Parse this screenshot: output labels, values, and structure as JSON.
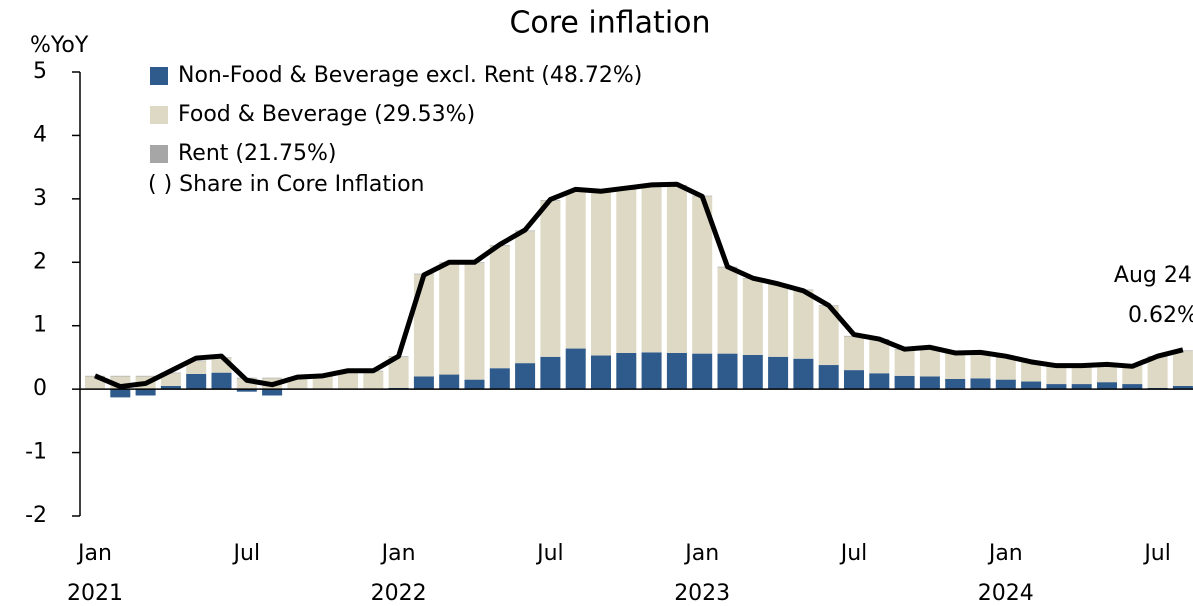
{
  "chart_data": {
    "type": "bar_line",
    "title": "Core inflation",
    "y_label": "%YoY",
    "legend_note": "( ) Share in Core Inflation",
    "annotation": "Aug 24",
    "categories": [
      "Jan",
      null,
      null,
      null,
      null,
      null,
      "Jul",
      null,
      null,
      null,
      null,
      null,
      "Jan",
      null,
      null,
      null,
      null,
      null,
      "Jul",
      null,
      null,
      null,
      null,
      null,
      "Jan",
      null,
      null,
      null,
      null,
      null,
      "Jul",
      null,
      null,
      null,
      null,
      null,
      "Jan",
      null,
      null,
      null,
      null,
      null,
      "Jul",
      null
    ],
    "years": [
      "2021",
      "2022",
      "2023",
      "2024"
    ],
    "ylim": [
      -2,
      5
    ],
    "yticks": [
      -2,
      -1,
      0,
      1,
      2,
      3,
      4,
      5
    ],
    "series": [
      {
        "name": "Non-Food & Beverage excl. Rent (48.72%)",
        "type": "bar",
        "color": "#2e5a8c",
        "values": [
          0.01,
          -0.13,
          -0.1,
          0.05,
          0.24,
          0.26,
          -0.04,
          -0.1,
          0.0,
          0.0,
          0.0,
          0.01,
          0.02,
          0.2,
          0.23,
          0.15,
          0.33,
          0.41,
          0.51,
          0.64,
          0.53,
          0.57,
          0.58,
          0.57,
          0.56,
          0.56,
          0.54,
          0.51,
          0.48,
          0.38,
          0.3,
          0.25,
          0.21,
          0.2,
          0.16,
          0.17,
          0.15,
          0.12,
          0.08,
          0.08,
          0.11,
          0.08,
          0.02,
          0.05
        ]
      },
      {
        "name": "Food & Beverage (29.53%)",
        "type": "bar",
        "color": "#ddd9c4",
        "values": [
          0.19,
          0.2,
          0.2,
          0.2,
          0.2,
          0.23,
          0.17,
          0.17,
          0.18,
          0.2,
          0.28,
          0.27,
          0.49,
          1.61,
          1.76,
          1.84,
          1.93,
          2.08,
          2.46,
          2.48,
          2.58,
          2.57,
          2.61,
          2.64,
          2.48,
          1.36,
          1.2,
          1.14,
          1.08,
          0.93,
          0.53,
          0.53,
          0.41,
          0.45,
          0.4,
          0.4,
          0.34,
          0.3,
          0.28,
          0.28,
          0.27,
          0.29,
          0.49,
          0.55
        ]
      },
      {
        "name": "Rent (21.75%)",
        "type": "bar",
        "color": "#a6a6a6",
        "values": [
          0.01,
          0.01,
          0.01,
          0.01,
          0.01,
          0.01,
          0.01,
          0.01,
          0.01,
          0.01,
          0.01,
          0.01,
          0.01,
          0.01,
          0.01,
          0.01,
          0.01,
          0.01,
          0.01,
          0.01,
          0.01,
          0.01,
          0.01,
          0.01,
          0.01,
          0.01,
          0.01,
          0.01,
          0.01,
          0.01,
          0.01,
          0.01,
          0.01,
          0.01,
          0.01,
          0.01,
          0.01,
          0.01,
          0.01,
          0.01,
          0.01,
          0.01,
          0.01,
          0.01
        ]
      },
      {
        "type": "line",
        "color": "#000000",
        "values": [
          0.21,
          0.04,
          0.09,
          0.29,
          0.49,
          0.52,
          0.14,
          0.07,
          0.19,
          0.21,
          0.29,
          0.29,
          0.52,
          1.8,
          2.0,
          2.0,
          2.28,
          2.51,
          2.99,
          3.15,
          3.12,
          3.17,
          3.22,
          3.23,
          3.04,
          1.93,
          1.75,
          1.66,
          1.55,
          1.32,
          0.86,
          0.79,
          0.63,
          0.66,
          0.57,
          0.58,
          0.52,
          0.43,
          0.37,
          0.37,
          0.39,
          0.36,
          0.52,
          0.62
        ],
        "value_labels": [
          null,
          null,
          null,
          null,
          null,
          null,
          null,
          null,
          null,
          null,
          null,
          null,
          null,
          null,
          null,
          null,
          null,
          null,
          null,
          null,
          null,
          null,
          null,
          null,
          null,
          null,
          null,
          null,
          null,
          null,
          null,
          null,
          null,
          null,
          null,
          null,
          null,
          null,
          null,
          null,
          null,
          null,
          null,
          "0.62%"
        ]
      }
    ]
  }
}
